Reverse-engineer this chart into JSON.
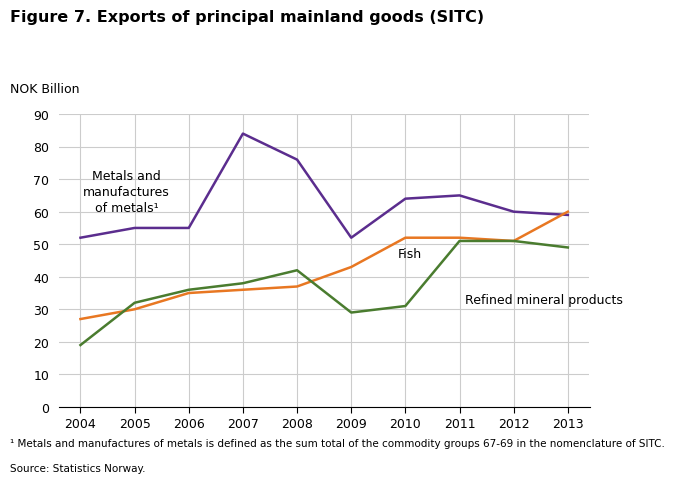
{
  "title": "Figure 7. Exports of principal mainland goods (SITC)",
  "ylabel": "NOK Billion",
  "years": [
    2004,
    2005,
    2006,
    2007,
    2008,
    2009,
    2010,
    2011,
    2012,
    2013
  ],
  "metals": [
    52,
    55,
    55,
    84,
    76,
    52,
    64,
    65,
    60,
    59
  ],
  "fish": [
    27,
    30,
    35,
    36,
    37,
    43,
    52,
    52,
    51,
    60
  ],
  "refined": [
    19,
    32,
    36,
    38,
    42,
    29,
    31,
    51,
    51,
    49
  ],
  "metals_color": "#5b2d8e",
  "fish_color": "#e87722",
  "refined_color": "#4a7c2f",
  "ylim": [
    0,
    90
  ],
  "yticks": [
    0,
    10,
    20,
    30,
    40,
    50,
    60,
    70,
    80,
    90
  ],
  "metals_label": "Metals and\nmanufactures\nof metals¹",
  "fish_label": "Fish",
  "refined_label": "Refined mineral products",
  "footnote": "¹ Metals and manufactures of metals is defined as the sum total of the commodity groups 67-69 in the nomenclature of SITC.",
  "source": "Source: Statistics Norway.",
  "bg_color": "#ffffff",
  "grid_color": "#cccccc"
}
